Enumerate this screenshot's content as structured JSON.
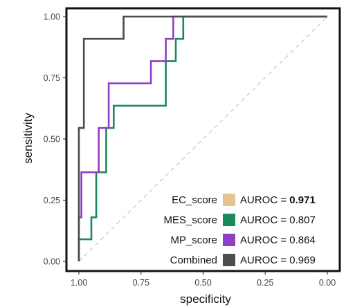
{
  "chart_data": {
    "type": "line",
    "xlabel": "specificity",
    "ylabel": "sensitivity",
    "xlim": [
      1.0,
      0.0
    ],
    "ylim": [
      0.0,
      1.0
    ],
    "x_reversed": true,
    "grid": false,
    "diagonal_reference": true,
    "legend_position": "bottom-right",
    "x_ticks": [
      {
        "value": 1.0,
        "label": "1.00"
      },
      {
        "value": 0.75,
        "label": "0.75"
      },
      {
        "value": 0.5,
        "label": "0.50"
      },
      {
        "value": 0.25,
        "label": "0.25"
      },
      {
        "value": 0.0,
        "label": "0.00"
      }
    ],
    "y_ticks": [
      {
        "value": 0.0,
        "label": "0.00"
      },
      {
        "value": 0.25,
        "label": "0.25"
      },
      {
        "value": 0.5,
        "label": "0.50"
      },
      {
        "value": 0.75,
        "label": "0.75"
      },
      {
        "value": 1.0,
        "label": "1.00"
      }
    ],
    "series": [
      {
        "name": "EC_score",
        "auroc_label": "AUROC = ",
        "auroc_value": "0.971",
        "auroc_bold": true,
        "color": "#e5c494",
        "points": [
          [
            1.0,
            0.0
          ],
          [
            1.0,
            0.45
          ],
          [
            1.0,
            0.545
          ],
          [
            0.98,
            0.545
          ],
          [
            0.98,
            0.909
          ],
          [
            0.82,
            0.909
          ],
          [
            0.82,
            1.0
          ],
          [
            0.0,
            1.0
          ]
        ]
      },
      {
        "name": "MES_score",
        "auroc_label": "AUROC = ",
        "auroc_value": "0.807",
        "auroc_bold": false,
        "color": "#1b8a5a",
        "points": [
          [
            1.0,
            0.0
          ],
          [
            1.0,
            0.09
          ],
          [
            0.95,
            0.09
          ],
          [
            0.95,
            0.18
          ],
          [
            0.93,
            0.18
          ],
          [
            0.93,
            0.364
          ],
          [
            0.89,
            0.364
          ],
          [
            0.89,
            0.545
          ],
          [
            0.86,
            0.545
          ],
          [
            0.86,
            0.636
          ],
          [
            0.65,
            0.636
          ],
          [
            0.65,
            0.818
          ],
          [
            0.61,
            0.818
          ],
          [
            0.61,
            0.909
          ],
          [
            0.58,
            0.909
          ],
          [
            0.58,
            1.0
          ],
          [
            0.0,
            1.0
          ]
        ]
      },
      {
        "name": "MP_score",
        "auroc_label": "AUROC = ",
        "auroc_value": "0.864",
        "auroc_bold": false,
        "color": "#8e3fc2",
        "points": [
          [
            1.0,
            0.0
          ],
          [
            1.0,
            0.18
          ],
          [
            0.99,
            0.18
          ],
          [
            0.99,
            0.364
          ],
          [
            0.92,
            0.364
          ],
          [
            0.92,
            0.545
          ],
          [
            0.88,
            0.545
          ],
          [
            0.88,
            0.727
          ],
          [
            0.71,
            0.727
          ],
          [
            0.71,
            0.818
          ],
          [
            0.65,
            0.818
          ],
          [
            0.65,
            0.909
          ],
          [
            0.62,
            0.909
          ],
          [
            0.62,
            1.0
          ],
          [
            0.0,
            1.0
          ]
        ]
      },
      {
        "name": "Combined",
        "auroc_label": "AUROC = ",
        "auroc_value": "0.969",
        "auroc_bold": false,
        "color": "#4d4d4d",
        "points": [
          [
            1.0,
            0.0
          ],
          [
            1.0,
            0.545
          ],
          [
            0.98,
            0.545
          ],
          [
            0.98,
            0.909
          ],
          [
            0.82,
            0.909
          ],
          [
            0.82,
            1.0
          ],
          [
            0.0,
            1.0
          ]
        ]
      }
    ]
  }
}
